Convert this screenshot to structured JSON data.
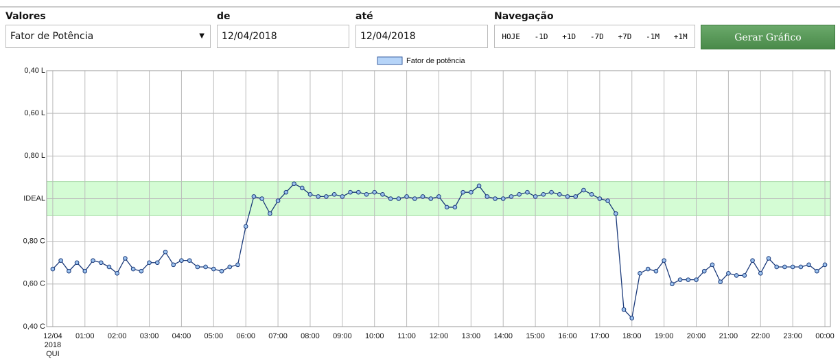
{
  "form": {
    "values_label": "Valores",
    "values_select": "Fator de Potência",
    "from_label": "de",
    "from_value": "12/04/2018",
    "to_label": "até",
    "to_value": "12/04/2018",
    "nav_label": "Navegação",
    "nav_buttons": [
      "HOJE",
      "-1D",
      "+1D",
      "-7D",
      "+7D",
      "-1M",
      "+1M"
    ],
    "submit": "Gerar Gráfico"
  },
  "chart_data": {
    "type": "line",
    "band": [
      0.92,
      1.08
    ],
    "band_name": "Fator de potência",
    "band_color": "#d4fcd4",
    "legend_color": "#b6d4f8",
    "series": [
      {
        "name": "Fator de potência",
        "color": "#1b3a7a",
        "values": [
          0.67,
          0.71,
          0.66,
          0.7,
          0.66,
          0.71,
          0.7,
          0.68,
          0.65,
          0.72,
          0.67,
          0.66,
          0.7,
          0.7,
          0.75,
          0.69,
          0.71,
          0.71,
          0.68,
          0.68,
          0.67,
          0.66,
          0.68,
          0.69,
          0.87,
          1.01,
          1.0,
          0.93,
          0.99,
          1.03,
          1.07,
          1.05,
          1.02,
          1.01,
          1.01,
          1.02,
          1.01,
          1.03,
          1.03,
          1.02,
          1.03,
          1.02,
          1.0,
          1.0,
          1.01,
          1.0,
          1.01,
          1.0,
          1.01,
          0.96,
          0.96,
          1.03,
          1.03,
          1.06,
          1.01,
          1.0,
          1.0,
          1.01,
          1.02,
          1.03,
          1.01,
          1.02,
          1.03,
          1.02,
          1.01,
          1.01,
          1.04,
          1.02,
          1.0,
          0.99,
          0.93,
          0.48,
          0.44,
          0.65,
          0.67,
          0.66,
          0.71,
          0.6,
          0.62,
          0.62,
          0.62,
          0.66,
          0.69,
          0.61,
          0.65,
          0.64,
          0.64,
          0.71,
          0.65,
          0.72,
          0.68,
          0.68,
          0.68,
          0.68,
          0.69,
          0.66,
          0.69
        ]
      }
    ],
    "x": [
      0,
      0.25,
      0.5,
      0.75,
      1,
      1.25,
      1.5,
      1.75,
      2,
      2.25,
      2.5,
      2.75,
      3,
      3.25,
      3.5,
      3.75,
      4,
      4.25,
      4.5,
      4.75,
      5,
      5.25,
      5.5,
      5.75,
      6,
      6.25,
      6.5,
      6.75,
      7,
      7.25,
      7.5,
      7.75,
      8,
      8.25,
      8.5,
      8.75,
      9,
      9.25,
      9.5,
      9.75,
      10,
      10.25,
      10.5,
      10.75,
      11,
      11.25,
      11.5,
      11.75,
      12,
      12.25,
      12.5,
      12.75,
      13,
      13.25,
      13.5,
      13.75,
      14,
      14.25,
      14.5,
      14.75,
      15,
      15.25,
      15.5,
      15.75,
      16,
      16.25,
      16.5,
      16.75,
      17,
      17.25,
      17.5,
      17.75,
      18,
      18.25,
      18.5,
      18.75,
      19,
      19.25,
      19.5,
      19.75,
      20,
      20.25,
      20.5,
      20.75,
      21,
      21.25,
      21.5,
      21.75,
      22,
      22.25,
      22.5,
      22.75,
      23,
      23.25,
      23.5,
      23.75,
      24
    ],
    "xlim": [
      -0.19,
      24.17
    ],
    "ylim": [
      0.4,
      1.6
    ],
    "grid": true,
    "yticks": [
      {
        "value": 1.6,
        "label": "0,40 L"
      },
      {
        "value": 1.4,
        "label": "0,60 L"
      },
      {
        "value": 1.2,
        "label": "0,80 L"
      },
      {
        "value": 1.0,
        "label": "IDEAL"
      },
      {
        "value": 0.8,
        "label": "0,80 C"
      },
      {
        "value": 0.6,
        "label": "0,60 C"
      },
      {
        "value": 0.4,
        "label": "0,40 C"
      }
    ],
    "xticks": [
      {
        "value": 0,
        "label": "12/04\n2018\nQUI"
      },
      {
        "value": 1,
        "label": "01:00"
      },
      {
        "value": 2,
        "label": "02:00"
      },
      {
        "value": 3,
        "label": "03:00"
      },
      {
        "value": 4,
        "label": "04:00"
      },
      {
        "value": 5,
        "label": "05:00"
      },
      {
        "value": 6,
        "label": "06:00"
      },
      {
        "value": 7,
        "label": "07:00"
      },
      {
        "value": 8,
        "label": "08:00"
      },
      {
        "value": 9,
        "label": "09:00"
      },
      {
        "value": 10,
        "label": "10:00"
      },
      {
        "value": 11,
        "label": "11:00"
      },
      {
        "value": 12,
        "label": "12:00"
      },
      {
        "value": 13,
        "label": "13:00"
      },
      {
        "value": 14,
        "label": "14:00"
      },
      {
        "value": 15,
        "label": "15:00"
      },
      {
        "value": 16,
        "label": "16:00"
      },
      {
        "value": 17,
        "label": "17:00"
      },
      {
        "value": 18,
        "label": "18:00"
      },
      {
        "value": 19,
        "label": "19:00"
      },
      {
        "value": 20,
        "label": "20:00"
      },
      {
        "value": 21,
        "label": "21:00"
      },
      {
        "value": 22,
        "label": "22:00"
      },
      {
        "value": 23,
        "label": "23:00"
      },
      {
        "value": 24,
        "label": "00:00"
      }
    ]
  }
}
